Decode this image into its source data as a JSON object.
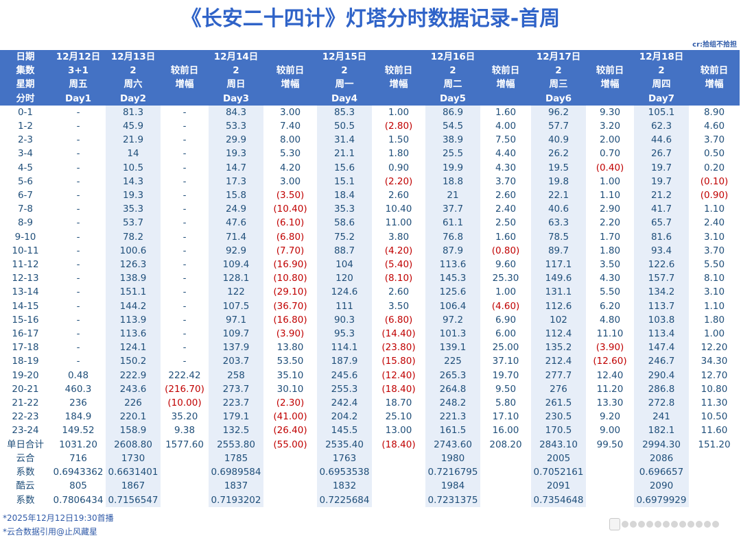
{
  "title": "《长安二十四计》灯塔分时数据记录-首周",
  "credit": "cr:拾组不拾担",
  "header_labels": [
    "日期",
    "集数",
    "星期",
    "分时"
  ],
  "days": [
    {
      "date": "12月12日",
      "ep": "3+1",
      "week": "周五",
      "day": "Day1"
    },
    {
      "date": "12月13日",
      "ep": "2",
      "week": "周六",
      "day": "Day2"
    },
    {
      "date": "12月14日",
      "ep": "2",
      "week": "周日",
      "day": "Day3"
    },
    {
      "date": "12月15日",
      "ep": "2",
      "week": "周一",
      "day": "Day4"
    },
    {
      "date": "12月16日",
      "ep": "2",
      "week": "周二",
      "day": "Day5"
    },
    {
      "date": "12月17日",
      "ep": "2",
      "week": "周三",
      "day": "Day6"
    },
    {
      "date": "12月18日",
      "ep": "2",
      "week": "周四",
      "day": "Day7"
    }
  ],
  "delta_header": [
    "较前日",
    "增幅"
  ],
  "rows": [
    [
      "0-1",
      "-",
      "81.3",
      "-",
      "84.3",
      "3.00",
      "85.3",
      "1.00",
      "86.9",
      "1.60",
      "96.2",
      "9.30",
      "105.1",
      "8.90"
    ],
    [
      "1-2",
      "-",
      "45.9",
      "-",
      "53.3",
      "7.40",
      "50.5",
      "(2.80)",
      "54.5",
      "4.00",
      "57.7",
      "3.20",
      "62.3",
      "4.60"
    ],
    [
      "2-3",
      "-",
      "21.9",
      "-",
      "29.9",
      "8.00",
      "31.4",
      "1.50",
      "38.9",
      "7.50",
      "40.9",
      "2.00",
      "44.6",
      "3.70"
    ],
    [
      "3-4",
      "-",
      "14",
      "-",
      "19.3",
      "5.30",
      "21.1",
      "1.80",
      "25.5",
      "4.40",
      "26.2",
      "0.70",
      "26.7",
      "0.50"
    ],
    [
      "4-5",
      "-",
      "10.5",
      "-",
      "14.7",
      "4.20",
      "15.6",
      "0.90",
      "19.9",
      "4.30",
      "19.5",
      "(0.40)",
      "19.7",
      "0.20"
    ],
    [
      "5-6",
      "-",
      "14.3",
      "-",
      "17.3",
      "3.00",
      "15.1",
      "(2.20)",
      "18.8",
      "3.70",
      "19.8",
      "1.00",
      "19.7",
      "(0.10)"
    ],
    [
      "6-7",
      "-",
      "19.3",
      "-",
      "15.8",
      "(3.50)",
      "18.4",
      "2.60",
      "21",
      "2.60",
      "22.1",
      "1.10",
      "21.2",
      "(0.90)"
    ],
    [
      "7-8",
      "-",
      "35.3",
      "-",
      "24.9",
      "(10.40)",
      "35.3",
      "10.40",
      "37.7",
      "2.40",
      "40.6",
      "2.90",
      "41.7",
      "1.10"
    ],
    [
      "8-9",
      "-",
      "53.7",
      "-",
      "47.6",
      "(6.10)",
      "58.6",
      "11.00",
      "61.1",
      "2.50",
      "63.3",
      "2.20",
      "65.7",
      "2.40"
    ],
    [
      "9-10",
      "-",
      "78.2",
      "-",
      "71.4",
      "(6.80)",
      "75.2",
      "3.80",
      "76.8",
      "1.60",
      "78.5",
      "1.70",
      "81.6",
      "3.10"
    ],
    [
      "10-11",
      "-",
      "100.6",
      "-",
      "92.9",
      "(7.70)",
      "88.7",
      "(4.20)",
      "87.9",
      "(0.80)",
      "89.7",
      "1.80",
      "93.4",
      "3.70"
    ],
    [
      "11-12",
      "-",
      "126.3",
      "-",
      "109.4",
      "(16.90)",
      "104",
      "(5.40)",
      "113.6",
      "9.60",
      "117.1",
      "3.50",
      "122.6",
      "5.50"
    ],
    [
      "12-13",
      "-",
      "138.9",
      "-",
      "128.1",
      "(10.80)",
      "120",
      "(8.10)",
      "145.3",
      "25.30",
      "149.6",
      "4.30",
      "157.7",
      "8.10"
    ],
    [
      "13-14",
      "-",
      "151.1",
      "-",
      "122",
      "(29.10)",
      "124.6",
      "2.60",
      "125.6",
      "1.00",
      "131.1",
      "5.50",
      "134.2",
      "3.10"
    ],
    [
      "14-15",
      "-",
      "144.2",
      "-",
      "107.5",
      "(36.70)",
      "111",
      "3.50",
      "106.4",
      "(4.60)",
      "112.6",
      "6.20",
      "113.7",
      "1.10"
    ],
    [
      "15-16",
      "-",
      "113.9",
      "-",
      "97.1",
      "(16.80)",
      "90.3",
      "(6.80)",
      "97.2",
      "6.90",
      "102",
      "4.80",
      "103.8",
      "1.80"
    ],
    [
      "16-17",
      "-",
      "113.6",
      "-",
      "109.7",
      "(3.90)",
      "95.3",
      "(14.40)",
      "101.3",
      "6.00",
      "112.4",
      "11.10",
      "113.4",
      "1.00"
    ],
    [
      "17-18",
      "-",
      "124.1",
      "-",
      "137.9",
      "13.80",
      "114.1",
      "(23.80)",
      "139.1",
      "25.00",
      "135.2",
      "(3.90)",
      "147.4",
      "12.20"
    ],
    [
      "18-19",
      "-",
      "150.2",
      "-",
      "203.7",
      "53.50",
      "187.9",
      "(15.80)",
      "225",
      "37.10",
      "212.4",
      "(12.60)",
      "246.7",
      "34.30"
    ],
    [
      "19-20",
      "0.48",
      "222.9",
      "222.42",
      "258",
      "35.10",
      "245.6",
      "(12.40)",
      "265.3",
      "19.70",
      "277.7",
      "12.40",
      "290.4",
      "12.70"
    ],
    [
      "20-21",
      "460.3",
      "243.6",
      "(216.70)",
      "273.7",
      "30.10",
      "255.3",
      "(18.40)",
      "264.8",
      "9.50",
      "276",
      "11.20",
      "286.8",
      "10.80"
    ],
    [
      "21-22",
      "236",
      "226",
      "(10.00)",
      "223.7",
      "(2.30)",
      "242.4",
      "18.70",
      "248.2",
      "5.80",
      "261.5",
      "13.30",
      "272.8",
      "11.30"
    ],
    [
      "22-23",
      "184.9",
      "220.1",
      "35.20",
      "179.1",
      "(41.00)",
      "204.2",
      "25.10",
      "221.3",
      "17.10",
      "230.5",
      "9.20",
      "241",
      "10.50"
    ],
    [
      "23-24",
      "149.52",
      "158.9",
      "9.38",
      "132.5",
      "(26.40)",
      "145.5",
      "13.00",
      "161.5",
      "16.00",
      "170.5",
      "9.00",
      "182.1",
      "11.60"
    ]
  ],
  "summary": {
    "total": [
      "单日合计",
      "1031.20",
      "2608.80",
      "1577.60",
      "2553.80",
      "(55.00)",
      "2535.40",
      "(18.40)",
      "2743.60",
      "208.20",
      "2843.10",
      "99.50",
      "2994.30",
      "151.20"
    ],
    "yunhe": [
      "云合",
      "716",
      "1730",
      "1785",
      "1763",
      "1980",
      "2005",
      "2086"
    ],
    "xishu1": [
      "系数",
      "0.6943362",
      "0.6631401",
      "0.6989584",
      "0.6953538",
      "0.7216795",
      "0.7052161",
      "0.696657"
    ],
    "kuyun": [
      "酷云",
      "805",
      "1867",
      "1837",
      "1832",
      "1984",
      "2091",
      "2090"
    ],
    "xishu2": [
      "系数",
      "0.7806434",
      "0.7156547",
      "0.7193202",
      "0.7225684",
      "0.7231375",
      "0.7354648",
      "0.6979929"
    ]
  },
  "footnotes": [
    "*2025年12月12日19:30首播",
    "*云合数据引用@止风藏星"
  ],
  "colors": {
    "header_bg": "#4472c4",
    "highlight_col": "#e7eef8",
    "negative": "#c00000",
    "text": "#1f4e79",
    "title": "#2f63c8"
  }
}
